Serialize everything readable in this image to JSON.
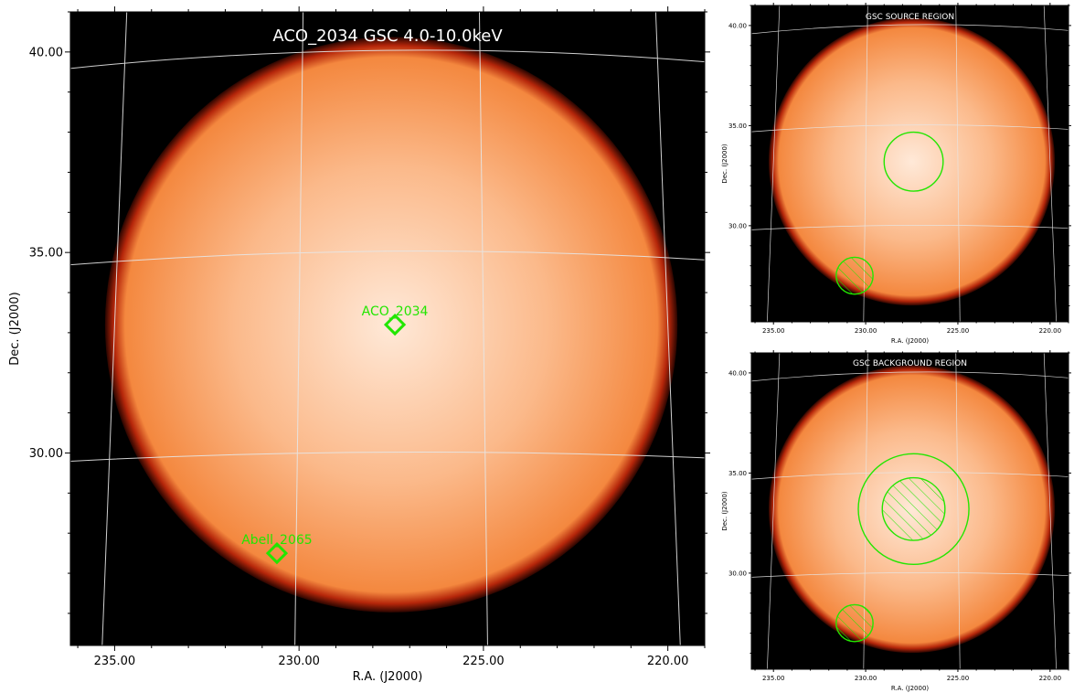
{
  "colors": {
    "disk_center": "#ffe9d8",
    "disk_mid": "#fbb98a",
    "disk_edge": "#f4883f",
    "rim": "#b5260a",
    "background": "#000000",
    "grid": "#e6e6e6",
    "region": "#22e600",
    "title_text": "#ffffff"
  },
  "chart_data": [
    {
      "id": "main",
      "type": "heatmap",
      "title": "ACO_2034 GSC 4.0-10.0keV",
      "xlabel": "R.A. (J2000)",
      "ylabel": "Dec. (J2000)",
      "xlim": [
        236.2,
        219.0
      ],
      "ylim": [
        25.2,
        41.0
      ],
      "xticks": [
        235.0,
        230.0,
        225.0,
        220.0
      ],
      "xtick_labels": [
        "235.00",
        "230.00",
        "225.00",
        "220.00"
      ],
      "yticks": [
        30.0,
        35.0,
        40.0
      ],
      "ytick_labels": [
        "30.00",
        "35.00",
        "40.00"
      ],
      "disk": {
        "ra": 227.5,
        "dec": 33.2,
        "radius_deg": 7.8
      },
      "sources": [
        {
          "name": "ACO_2034",
          "ra": 227.4,
          "dec": 33.2
        },
        {
          "name": "Abell_2065",
          "ra": 230.6,
          "dec": 27.5
        }
      ]
    },
    {
      "id": "source",
      "type": "heatmap",
      "title": "GSC SOURCE REGION",
      "xlabel": "R.A. (J2000)",
      "ylabel": "Dec. (J2000)",
      "xlim": [
        236.2,
        219.0
      ],
      "ylim": [
        25.2,
        41.0
      ],
      "xticks": [
        235.0,
        230.0,
        225.0,
        220.0
      ],
      "xtick_labels": [
        "235.00",
        "230.00",
        "225.00",
        "220.00"
      ],
      "yticks": [
        30.0,
        35.0,
        40.0
      ],
      "ytick_labels": [
        "30.00",
        "35.00",
        "40.00"
      ],
      "disk": {
        "ra": 227.5,
        "dec": 33.2,
        "radius_deg": 7.8
      },
      "regions": [
        {
          "shape": "circle",
          "ra": 227.4,
          "dec": 33.2,
          "radius_deg": 1.6,
          "hatched": false
        },
        {
          "shape": "circle",
          "ra": 230.6,
          "dec": 27.5,
          "radius_deg": 1.0,
          "hatched": true
        }
      ]
    },
    {
      "id": "background",
      "type": "heatmap",
      "title": "GSC BACKGROUND REGION",
      "xlabel": "R.A. (J2000)",
      "ylabel": "Dec. (J2000)",
      "xlim": [
        236.2,
        219.0
      ],
      "ylim": [
        25.2,
        41.0
      ],
      "xticks": [
        235.0,
        230.0,
        225.0,
        220.0
      ],
      "xtick_labels": [
        "235.00",
        "230.00",
        "225.00",
        "220.00"
      ],
      "yticks": [
        30.0,
        35.0,
        40.0
      ],
      "ytick_labels": [
        "30.00",
        "35.00",
        "40.00"
      ],
      "disk": {
        "ra": 227.5,
        "dec": 33.2,
        "radius_deg": 7.8
      },
      "regions": [
        {
          "shape": "circle",
          "ra": 227.4,
          "dec": 33.2,
          "radius_deg": 3.0,
          "hatched": false
        },
        {
          "shape": "circle",
          "ra": 227.4,
          "dec": 33.2,
          "radius_deg": 1.7,
          "hatched": true
        },
        {
          "shape": "circle",
          "ra": 230.6,
          "dec": 27.5,
          "radius_deg": 1.0,
          "hatched": true
        }
      ]
    }
  ]
}
